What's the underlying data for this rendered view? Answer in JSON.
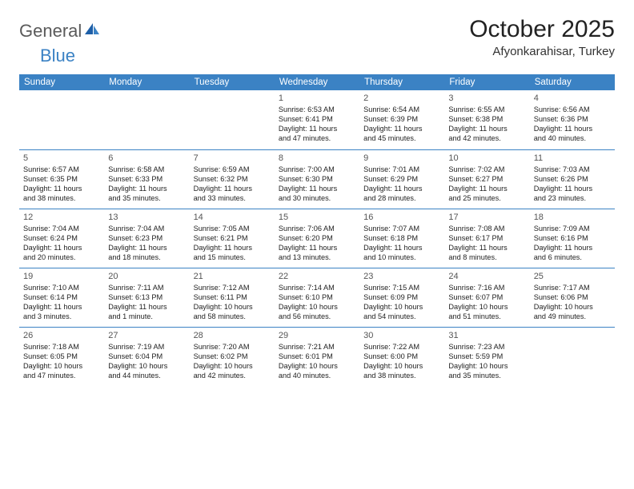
{
  "logo": {
    "text1": "General",
    "text2": "Blue"
  },
  "title": "October 2025",
  "location": "Afyonkarahisar, Turkey",
  "header_bg": "#3b82c4",
  "day_headers": [
    "Sunday",
    "Monday",
    "Tuesday",
    "Wednesday",
    "Thursday",
    "Friday",
    "Saturday"
  ],
  "weeks": [
    [
      null,
      null,
      null,
      {
        "n": "1",
        "sr": "Sunrise: 6:53 AM",
        "ss": "Sunset: 6:41 PM",
        "d1": "Daylight: 11 hours",
        "d2": "and 47 minutes."
      },
      {
        "n": "2",
        "sr": "Sunrise: 6:54 AM",
        "ss": "Sunset: 6:39 PM",
        "d1": "Daylight: 11 hours",
        "d2": "and 45 minutes."
      },
      {
        "n": "3",
        "sr": "Sunrise: 6:55 AM",
        "ss": "Sunset: 6:38 PM",
        "d1": "Daylight: 11 hours",
        "d2": "and 42 minutes."
      },
      {
        "n": "4",
        "sr": "Sunrise: 6:56 AM",
        "ss": "Sunset: 6:36 PM",
        "d1": "Daylight: 11 hours",
        "d2": "and 40 minutes."
      }
    ],
    [
      {
        "n": "5",
        "sr": "Sunrise: 6:57 AM",
        "ss": "Sunset: 6:35 PM",
        "d1": "Daylight: 11 hours",
        "d2": "and 38 minutes."
      },
      {
        "n": "6",
        "sr": "Sunrise: 6:58 AM",
        "ss": "Sunset: 6:33 PM",
        "d1": "Daylight: 11 hours",
        "d2": "and 35 minutes."
      },
      {
        "n": "7",
        "sr": "Sunrise: 6:59 AM",
        "ss": "Sunset: 6:32 PM",
        "d1": "Daylight: 11 hours",
        "d2": "and 33 minutes."
      },
      {
        "n": "8",
        "sr": "Sunrise: 7:00 AM",
        "ss": "Sunset: 6:30 PM",
        "d1": "Daylight: 11 hours",
        "d2": "and 30 minutes."
      },
      {
        "n": "9",
        "sr": "Sunrise: 7:01 AM",
        "ss": "Sunset: 6:29 PM",
        "d1": "Daylight: 11 hours",
        "d2": "and 28 minutes."
      },
      {
        "n": "10",
        "sr": "Sunrise: 7:02 AM",
        "ss": "Sunset: 6:27 PM",
        "d1": "Daylight: 11 hours",
        "d2": "and 25 minutes."
      },
      {
        "n": "11",
        "sr": "Sunrise: 7:03 AM",
        "ss": "Sunset: 6:26 PM",
        "d1": "Daylight: 11 hours",
        "d2": "and 23 minutes."
      }
    ],
    [
      {
        "n": "12",
        "sr": "Sunrise: 7:04 AM",
        "ss": "Sunset: 6:24 PM",
        "d1": "Daylight: 11 hours",
        "d2": "and 20 minutes."
      },
      {
        "n": "13",
        "sr": "Sunrise: 7:04 AM",
        "ss": "Sunset: 6:23 PM",
        "d1": "Daylight: 11 hours",
        "d2": "and 18 minutes."
      },
      {
        "n": "14",
        "sr": "Sunrise: 7:05 AM",
        "ss": "Sunset: 6:21 PM",
        "d1": "Daylight: 11 hours",
        "d2": "and 15 minutes."
      },
      {
        "n": "15",
        "sr": "Sunrise: 7:06 AM",
        "ss": "Sunset: 6:20 PM",
        "d1": "Daylight: 11 hours",
        "d2": "and 13 minutes."
      },
      {
        "n": "16",
        "sr": "Sunrise: 7:07 AM",
        "ss": "Sunset: 6:18 PM",
        "d1": "Daylight: 11 hours",
        "d2": "and 10 minutes."
      },
      {
        "n": "17",
        "sr": "Sunrise: 7:08 AM",
        "ss": "Sunset: 6:17 PM",
        "d1": "Daylight: 11 hours",
        "d2": "and 8 minutes."
      },
      {
        "n": "18",
        "sr": "Sunrise: 7:09 AM",
        "ss": "Sunset: 6:16 PM",
        "d1": "Daylight: 11 hours",
        "d2": "and 6 minutes."
      }
    ],
    [
      {
        "n": "19",
        "sr": "Sunrise: 7:10 AM",
        "ss": "Sunset: 6:14 PM",
        "d1": "Daylight: 11 hours",
        "d2": "and 3 minutes."
      },
      {
        "n": "20",
        "sr": "Sunrise: 7:11 AM",
        "ss": "Sunset: 6:13 PM",
        "d1": "Daylight: 11 hours",
        "d2": "and 1 minute."
      },
      {
        "n": "21",
        "sr": "Sunrise: 7:12 AM",
        "ss": "Sunset: 6:11 PM",
        "d1": "Daylight: 10 hours",
        "d2": "and 58 minutes."
      },
      {
        "n": "22",
        "sr": "Sunrise: 7:14 AM",
        "ss": "Sunset: 6:10 PM",
        "d1": "Daylight: 10 hours",
        "d2": "and 56 minutes."
      },
      {
        "n": "23",
        "sr": "Sunrise: 7:15 AM",
        "ss": "Sunset: 6:09 PM",
        "d1": "Daylight: 10 hours",
        "d2": "and 54 minutes."
      },
      {
        "n": "24",
        "sr": "Sunrise: 7:16 AM",
        "ss": "Sunset: 6:07 PM",
        "d1": "Daylight: 10 hours",
        "d2": "and 51 minutes."
      },
      {
        "n": "25",
        "sr": "Sunrise: 7:17 AM",
        "ss": "Sunset: 6:06 PM",
        "d1": "Daylight: 10 hours",
        "d2": "and 49 minutes."
      }
    ],
    [
      {
        "n": "26",
        "sr": "Sunrise: 7:18 AM",
        "ss": "Sunset: 6:05 PM",
        "d1": "Daylight: 10 hours",
        "d2": "and 47 minutes."
      },
      {
        "n": "27",
        "sr": "Sunrise: 7:19 AM",
        "ss": "Sunset: 6:04 PM",
        "d1": "Daylight: 10 hours",
        "d2": "and 44 minutes."
      },
      {
        "n": "28",
        "sr": "Sunrise: 7:20 AM",
        "ss": "Sunset: 6:02 PM",
        "d1": "Daylight: 10 hours",
        "d2": "and 42 minutes."
      },
      {
        "n": "29",
        "sr": "Sunrise: 7:21 AM",
        "ss": "Sunset: 6:01 PM",
        "d1": "Daylight: 10 hours",
        "d2": "and 40 minutes."
      },
      {
        "n": "30",
        "sr": "Sunrise: 7:22 AM",
        "ss": "Sunset: 6:00 PM",
        "d1": "Daylight: 10 hours",
        "d2": "and 38 minutes."
      },
      {
        "n": "31",
        "sr": "Sunrise: 7:23 AM",
        "ss": "Sunset: 5:59 PM",
        "d1": "Daylight: 10 hours",
        "d2": "and 35 minutes."
      },
      null
    ]
  ]
}
